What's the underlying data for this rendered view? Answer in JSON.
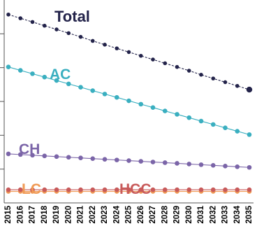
{
  "chart_data": {
    "type": "line",
    "title": "",
    "xlabel": "",
    "ylabel": "",
    "x": [
      "2015",
      "2016",
      "2017",
      "2018",
      "2019",
      "2020",
      "2021",
      "2022",
      "2023",
      "2024",
      "2025",
      "2026",
      "2027",
      "2028",
      "2029",
      "2030",
      "2031",
      "2032",
      "2033",
      "2034",
      "2035"
    ],
    "ylim": [
      0,
      6
    ],
    "grid": false,
    "legend": "inline labels",
    "series": [
      {
        "name": "Total",
        "color": "#23234a",
        "line_style": "dashed",
        "values": [
          5.57,
          5.46,
          5.35,
          5.24,
          5.13,
          5.02,
          4.91,
          4.79,
          4.68,
          4.57,
          4.46,
          4.35,
          4.24,
          4.13,
          4.02,
          3.91,
          3.79,
          3.68,
          3.57,
          3.46,
          3.35
        ]
      },
      {
        "name": "AC",
        "color": "#3aafc0",
        "line_style": "solid",
        "values": [
          4.02,
          3.92,
          3.82,
          3.72,
          3.62,
          3.52,
          3.42,
          3.32,
          3.22,
          3.12,
          3.02,
          2.92,
          2.82,
          2.72,
          2.62,
          2.52,
          2.42,
          2.32,
          2.22,
          2.12,
          2.02
        ]
      },
      {
        "name": "CH",
        "color": "#7b65a8",
        "line_style": "solid",
        "values": [
          1.45,
          1.43,
          1.41,
          1.39,
          1.37,
          1.35,
          1.33,
          1.31,
          1.29,
          1.27,
          1.25,
          1.23,
          1.21,
          1.19,
          1.17,
          1.15,
          1.13,
          1.11,
          1.09,
          1.07,
          1.05
        ]
      },
      {
        "name": "LC",
        "color": "#f09a55",
        "line_style": "solid",
        "values": [
          0.34,
          0.34,
          0.34,
          0.34,
          0.34,
          0.34,
          0.34,
          0.34,
          0.34,
          0.34,
          0.34,
          0.34,
          0.34,
          0.34,
          0.34,
          0.34,
          0.34,
          0.34,
          0.34,
          0.34,
          0.34
        ]
      },
      {
        "name": "HCC",
        "color": "#c85a5a",
        "line_style": "solid",
        "values": [
          0.39,
          0.39,
          0.39,
          0.39,
          0.39,
          0.39,
          0.39,
          0.39,
          0.39,
          0.39,
          0.39,
          0.39,
          0.39,
          0.39,
          0.39,
          0.39,
          0.39,
          0.39,
          0.39,
          0.39,
          0.39
        ]
      }
    ]
  }
}
